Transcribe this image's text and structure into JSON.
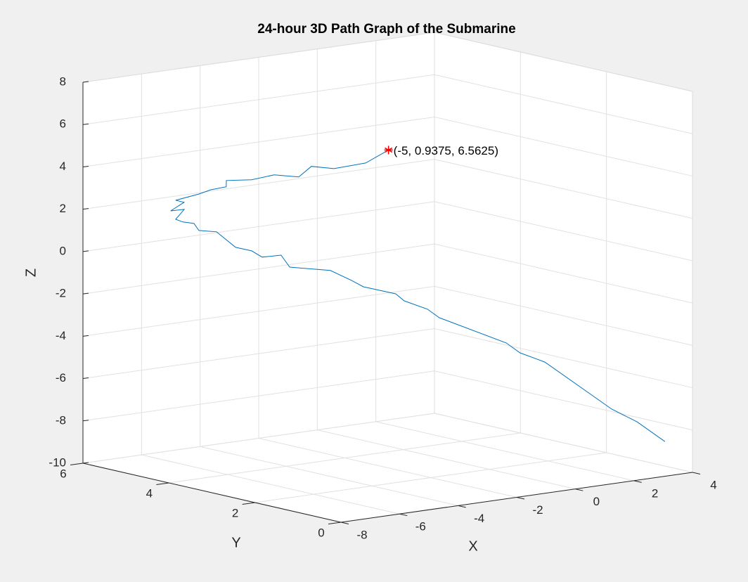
{
  "chart_data": {
    "type": "line3d",
    "title": "24-hour 3D Path Graph of the Submarine",
    "xlabel": "X",
    "ylabel": "Y",
    "zlabel": "Z",
    "xlim": [
      -8,
      4
    ],
    "ylim": [
      0,
      6
    ],
    "zlim": [
      -10,
      8
    ],
    "xticks": [
      -8,
      -6,
      -4,
      -2,
      0,
      2,
      4
    ],
    "yticks": [
      0,
      2,
      4,
      6
    ],
    "zticks": [
      -10,
      -8,
      -6,
      -4,
      -2,
      0,
      2,
      4,
      6,
      8
    ],
    "grid": true,
    "series": [
      {
        "color": "#0072bd",
        "x": [
          3.06,
          2.4,
          1.83,
          -0.16,
          -0.71,
          -0.89,
          -2.88,
          -2.99,
          -3.49,
          -3.49,
          -4.3,
          -4.41,
          -4.84,
          -5.14,
          -5.64,
          -5.64,
          -6.14,
          -6.35,
          -6.75,
          -7.11,
          -7.42,
          -7.44,
          -7.67,
          -7.77,
          -7.48,
          -7.94,
          -7.63,
          -7.99,
          -7.56,
          -7.45,
          -7.22,
          -7.36,
          -6.94,
          -6.61,
          -6.21,
          -6.22,
          -5.89,
          -5.25,
          -5
        ],
        "y": [
          0,
          0.2,
          0.4,
          0.6,
          0.8,
          1.0,
          1.2,
          1.4,
          1.6,
          1.8,
          2.0,
          2.2,
          2.4,
          2.6,
          2.8,
          3.0,
          3.1,
          3.2,
          3.3,
          3.5,
          3.7,
          3.8,
          3.9,
          4.0,
          4.0,
          4.0,
          3.9,
          3.85,
          3.6,
          3.4,
          3.2,
          3.1,
          2.8,
          2.5,
          2.2,
          1.9,
          1.6,
          1.3,
          0.9375
        ],
        "z": [
          -8.36,
          -7.39,
          -6.77,
          -4.25,
          -3.8,
          -3.39,
          -1.9,
          -1.57,
          -1.17,
          -0.93,
          -0.53,
          -0.3,
          0.16,
          0.19,
          0.29,
          0.76,
          0.72,
          1.01,
          1.21,
          1.92,
          1.95,
          2.24,
          2.31,
          2.41,
          2.82,
          2.84,
          3.23,
          3.42,
          3.75,
          4.02,
          4.21,
          4.58,
          4.67,
          4.98,
          4.94,
          5.58,
          5.55,
          5.83,
          6.5625
        ]
      }
    ],
    "marker": {
      "x": -5,
      "y": 0.9375,
      "z": 6.5625,
      "color": "#ff0000",
      "label": "(-5, 0.9375, 6.5625)"
    }
  }
}
